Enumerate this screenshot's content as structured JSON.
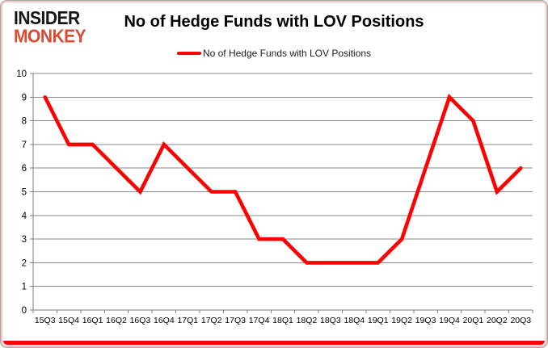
{
  "header": {
    "logo_line1": "INSIDER",
    "logo_line2": "MONKEY",
    "title": "No of Hedge Funds with LOV Positions"
  },
  "legend": {
    "label": "No of Hedge Funds with LOV Positions"
  },
  "colors": {
    "line": "#fe0000",
    "grid": "#8a8a8a",
    "axis": "#7f7f7f",
    "logo_accent": "#d94b33",
    "border_pink": "#f5c4bc",
    "bottom_bar": "#fe0000",
    "label_text": "#000000"
  },
  "chart_data": {
    "type": "line",
    "title": "No of Hedge Funds with LOV Positions",
    "categories": [
      "15Q3",
      "15Q4",
      "16Q1",
      "16Q2",
      "16Q3",
      "16Q4",
      "17Q1",
      "17Q2",
      "17Q3",
      "17Q4",
      "18Q1",
      "18Q2",
      "18Q3",
      "18Q4",
      "19Q1",
      "19Q2",
      "19Q3",
      "19Q4",
      "20Q1",
      "20Q2",
      "20Q3"
    ],
    "values": [
      9,
      7,
      7,
      6,
      5,
      7,
      6,
      5,
      5,
      3,
      3,
      2,
      2,
      2,
      2,
      3,
      6,
      9,
      8,
      5,
      6
    ],
    "series_name": "No of Hedge Funds with LOV Positions",
    "xlabel": "",
    "ylabel": "",
    "ylim": [
      0,
      10
    ],
    "ytick_step": 1,
    "grid": true,
    "legend_position": "top"
  }
}
